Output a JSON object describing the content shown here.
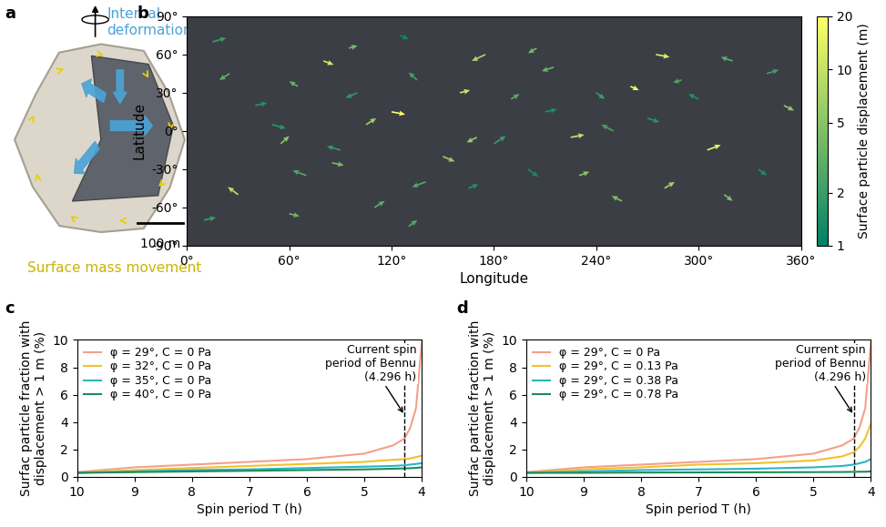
{
  "chart_data": [
    {
      "type": "diagram",
      "panel": "a",
      "labels": {
        "internal": "Internal\ndeformation",
        "surface": "Surface mass movement",
        "scale_bar": "100 m"
      }
    },
    {
      "type": "quiver",
      "panel": "b",
      "x_label": "Longitude",
      "y_label": "Latitude",
      "xlim": [
        0,
        360
      ],
      "xticks": [
        {
          "value": 0,
          "label": "0°"
        },
        {
          "value": 60,
          "label": "60°"
        },
        {
          "value": 120,
          "label": "120°"
        },
        {
          "value": 180,
          "label": "180°"
        },
        {
          "value": 240,
          "label": "240°"
        },
        {
          "value": 300,
          "label": "300°"
        },
        {
          "value": 360,
          "label": "360°"
        }
      ],
      "ylim": [
        -90,
        90
      ],
      "yticks": [
        {
          "value": -90,
          "label": "-90°"
        },
        {
          "value": -60,
          "label": "-60°"
        },
        {
          "value": -30,
          "label": "-30°"
        },
        {
          "value": 0,
          "label": "0°"
        },
        {
          "value": 30,
          "label": "30°"
        },
        {
          "value": 60,
          "label": "60°"
        },
        {
          "value": 90,
          "label": "90°"
        }
      ],
      "colorbar": {
        "label": "Surface particle displacement (m)",
        "range": [
          1,
          20
        ],
        "ticks": [
          1,
          2,
          5,
          10,
          20
        ],
        "log": true
      },
      "arrows": {
        "lon": [
          15,
          25,
          40,
          55,
          70,
          80,
          95,
          100,
          110,
          120,
          135,
          150,
          165,
          175,
          190,
          200,
          215,
          225,
          240,
          255,
          270,
          280,
          290,
          305,
          320,
          335,
          350,
          10,
          30,
          50,
          65,
          85,
          105,
          125,
          140,
          160,
          180,
          205,
          230,
          250,
          275,
          300,
          315,
          340,
          60,
          90,
          130,
          170,
          210,
          260
        ],
        "lat": [
          70,
          45,
          20,
          -10,
          -35,
          55,
          65,
          30,
          -60,
          15,
          40,
          -20,
          -45,
          60,
          25,
          -30,
          50,
          -5,
          30,
          -55,
          10,
          -45,
          40,
          -15,
          55,
          -30,
          20,
          -70,
          -50,
          5,
          35,
          -25,
          5,
          75,
          -40,
          30,
          -10,
          65,
          -35,
          0,
          60,
          25,
          -50,
          45,
          -65,
          -15,
          -75,
          -5,
          15,
          35
        ],
        "dlon": [
          8,
          -6,
          7,
          5,
          -8,
          6,
          5,
          -7,
          6,
          8,
          -5,
          7,
          6,
          -8,
          5,
          6,
          -7,
          8,
          5,
          -6,
          7,
          6,
          -5,
          8,
          -7,
          5,
          6,
          7,
          -6,
          8,
          -5,
          7,
          6,
          5,
          -8,
          6,
          7,
          -5,
          6,
          -7,
          8,
          -6,
          5,
          7,
          6,
          -8,
          5,
          -6,
          7,
          5
        ],
        "dlat": [
          3,
          -5,
          2,
          6,
          4,
          -3,
          2,
          -4,
          5,
          -2,
          6,
          -4,
          3,
          -5,
          4,
          -6,
          -3,
          2,
          -5,
          4,
          -3,
          5,
          -2,
          4,
          3,
          -5,
          -4,
          2,
          6,
          -3,
          4,
          -2,
          5,
          -3,
          -4,
          2,
          6,
          -4,
          3,
          5,
          -2,
          4,
          -5,
          3,
          -2,
          3,
          5,
          -4,
          2,
          -3
        ],
        "displacement": [
          2,
          3,
          1.5,
          5,
          2.5,
          12,
          4,
          1.8,
          3,
          20,
          2.2,
          6,
          1.5,
          8,
          2.8,
          1.3,
          3.5,
          10,
          2,
          4.5,
          1.6,
          7,
          2.4,
          15,
          3,
          1.4,
          5.5,
          2,
          9,
          1.7,
          3.2,
          4,
          6.5,
          1.2,
          2.6,
          11,
          1.9,
          3.8,
          5,
          2.3,
          14,
          1.5,
          4.2,
          2.1,
          3.6,
          1.8,
          2.7,
          6,
          1.4,
          17
        ]
      }
    },
    {
      "type": "line",
      "panel": "c",
      "x_label": "Spin period T (h)",
      "y_label": "Surfac particle fraction with\ndisplacement > 1 m (%)",
      "xlim": [
        10,
        4
      ],
      "xticks": [
        10,
        9,
        8,
        7,
        6,
        5,
        4
      ],
      "ylim": [
        0,
        10
      ],
      "yticks": [
        0,
        2,
        4,
        6,
        8,
        10
      ],
      "legend": "upper left",
      "reference_line": {
        "x": 4.296,
        "label": "Current spin\nperiod of Bennu\n(4.296 h)"
      },
      "x": [
        10,
        9,
        8,
        7,
        6,
        5,
        4.5,
        4.3,
        4.2,
        4.1,
        4.0
      ],
      "series": [
        {
          "name": "φ = 29°, C = 0 Pa",
          "color": "#f4a08c",
          "values": [
            0.35,
            0.7,
            0.9,
            1.1,
            1.3,
            1.7,
            2.3,
            2.8,
            3.6,
            5.0,
            9.8
          ]
        },
        {
          "name": "φ = 32°, C = 0 Pa",
          "color": "#f2c12e",
          "values": [
            0.3,
            0.5,
            0.65,
            0.8,
            0.95,
            1.1,
            1.25,
            1.3,
            1.35,
            1.45,
            1.55
          ]
        },
        {
          "name": "φ = 35°, C = 0 Pa",
          "color": "#2ab5c6",
          "values": [
            0.3,
            0.4,
            0.5,
            0.55,
            0.65,
            0.75,
            0.8,
            0.85,
            0.9,
            0.95,
            1.0
          ]
        },
        {
          "name": "φ = 40°, C = 0 Pa",
          "color": "#1e8c5a",
          "values": [
            0.3,
            0.35,
            0.4,
            0.45,
            0.5,
            0.55,
            0.6,
            0.62,
            0.64,
            0.66,
            0.7
          ]
        }
      ]
    },
    {
      "type": "line",
      "panel": "d",
      "x_label": "Spin period T (h)",
      "y_label": "Surfac particle fraction with\ndisplacement > 1 m (%)",
      "xlim": [
        10,
        4
      ],
      "xticks": [
        10,
        9,
        8,
        7,
        6,
        5,
        4
      ],
      "ylim": [
        0,
        10
      ],
      "yticks": [
        0,
        2,
        4,
        6,
        8,
        10
      ],
      "legend": "upper left",
      "reference_line": {
        "x": 4.296,
        "label": "Current spin\nperiod of Bennu\n(4.296 h)"
      },
      "x": [
        10,
        9,
        8,
        7,
        6,
        5,
        4.5,
        4.3,
        4.2,
        4.1,
        4.0
      ],
      "series": [
        {
          "name": "φ = 29°, C = 0 Pa",
          "color": "#f4a08c",
          "values": [
            0.35,
            0.7,
            0.9,
            1.1,
            1.3,
            1.7,
            2.3,
            2.8,
            3.6,
            5.0,
            9.8
          ]
        },
        {
          "name": "φ = 29°, C = 0.13 Pa",
          "color": "#f2c12e",
          "values": [
            0.3,
            0.55,
            0.7,
            0.9,
            1.0,
            1.2,
            1.5,
            1.8,
            2.2,
            2.8,
            3.9
          ]
        },
        {
          "name": "φ = 29°, C = 0.38 Pa",
          "color": "#2ab5c6",
          "values": [
            0.3,
            0.4,
            0.5,
            0.55,
            0.6,
            0.7,
            0.8,
            0.9,
            1.0,
            1.1,
            1.3
          ]
        },
        {
          "name": "φ = 29°, C = 0.78 Pa",
          "color": "#1e8c5a",
          "values": [
            0.3,
            0.3,
            0.32,
            0.33,
            0.34,
            0.35,
            0.36,
            0.37,
            0.38,
            0.38,
            0.4
          ]
        }
      ]
    }
  ]
}
